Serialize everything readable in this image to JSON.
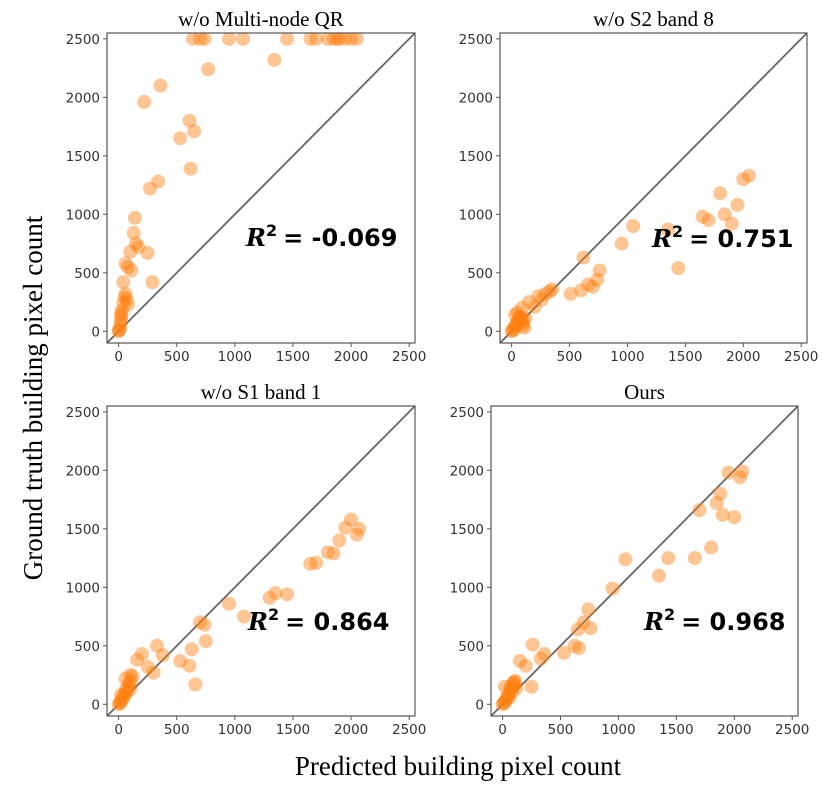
{
  "figure": {
    "xlabel": "Predicted building pixel count",
    "ylabel": "Ground truth building pixel count"
  },
  "colors": {
    "point": "#ff7f0e",
    "diagonal": "#666666",
    "frame": "#555555"
  },
  "chart_data": [
    {
      "type": "scatter",
      "title": "w/o Multi-node QR",
      "r2_label": "R",
      "r2_exp": "2",
      "r2_value": "= -0.069",
      "xlim": [
        -100,
        2550
      ],
      "ylim": [
        -100,
        2550
      ],
      "xticks": [
        0,
        500,
        1000,
        1500,
        2000,
        2500
      ],
      "yticks": [
        0,
        500,
        1000,
        1500,
        2000,
        2500
      ],
      "x": [
        0,
        5,
        10,
        15,
        20,
        25,
        30,
        40,
        50,
        60,
        70,
        80,
        20,
        40,
        60,
        80,
        100,
        110,
        130,
        140,
        150,
        170,
        220,
        250,
        270,
        290,
        340,
        360,
        530,
        610,
        640,
        650,
        620,
        700,
        740,
        770,
        950,
        1070,
        1340,
        1450,
        1650,
        1700,
        1800,
        1850,
        1880,
        1900,
        1950,
        2000,
        2050
      ],
      "y": [
        0,
        10,
        20,
        60,
        100,
        130,
        180,
        240,
        290,
        320,
        270,
        230,
        150,
        420,
        580,
        550,
        680,
        520,
        840,
        970,
        750,
        720,
        1960,
        670,
        1220,
        420,
        1280,
        2100,
        1650,
        1800,
        2500,
        1710,
        1390,
        2500,
        2500,
        2240,
        2500,
        2500,
        2320,
        2500,
        2500,
        2500,
        2500,
        2500,
        2500,
        2500,
        2500,
        2500,
        2500
      ]
    },
    {
      "type": "scatter",
      "title": "w/o S2 band 8",
      "r2_label": "R",
      "r2_exp": "2",
      "r2_value": "= 0.751",
      "xlim": [
        -100,
        2550
      ],
      "ylim": [
        -100,
        2550
      ],
      "xticks": [
        0,
        500,
        1000,
        1500,
        2000,
        2500
      ],
      "yticks": [
        0,
        500,
        1000,
        1500,
        2000,
        2500
      ],
      "x": [
        0,
        10,
        20,
        30,
        40,
        50,
        60,
        70,
        80,
        90,
        100,
        110,
        120,
        30,
        50,
        70,
        90,
        100,
        150,
        200,
        230,
        260,
        290,
        330,
        350,
        510,
        600,
        620,
        660,
        700,
        740,
        760,
        950,
        1050,
        1350,
        1440,
        1650,
        1700,
        1800,
        1840,
        1900,
        1950,
        2000,
        2050
      ],
      "y": [
        0,
        10,
        20,
        40,
        60,
        80,
        100,
        120,
        90,
        70,
        50,
        30,
        110,
        140,
        160,
        120,
        200,
        100,
        250,
        210,
        300,
        270,
        320,
        340,
        360,
        320,
        350,
        630,
        400,
        380,
        440,
        520,
        750,
        900,
        870,
        540,
        980,
        950,
        1180,
        1000,
        920,
        1080,
        1300,
        1330
      ],
      "diag_clip": [
        660,
        1180
      ]
    },
    {
      "type": "scatter",
      "title": "w/o S1 band 1",
      "r2_label": "R",
      "r2_exp": "2",
      "r2_value": "= 0.864",
      "xlim": [
        -100,
        2550
      ],
      "ylim": [
        -100,
        2550
      ],
      "xticks": [
        0,
        500,
        1000,
        1500,
        2000,
        2500
      ],
      "yticks": [
        0,
        500,
        1000,
        1500,
        2000,
        2500
      ],
      "x": [
        0,
        10,
        20,
        30,
        40,
        50,
        60,
        70,
        80,
        90,
        100,
        110,
        120,
        20,
        60,
        100,
        160,
        200,
        250,
        300,
        330,
        380,
        530,
        610,
        630,
        660,
        700,
        740,
        750,
        950,
        1080,
        1300,
        1350,
        1450,
        1650,
        1700,
        1800,
        1850,
        1900,
        1950,
        2000,
        2050,
        2070
      ],
      "y": [
        0,
        10,
        20,
        40,
        60,
        80,
        120,
        100,
        150,
        180,
        130,
        200,
        240,
        80,
        220,
        250,
        380,
        430,
        320,
        270,
        500,
        420,
        370,
        330,
        470,
        170,
        700,
        680,
        540,
        860,
        750,
        910,
        950,
        940,
        1200,
        1210,
        1300,
        1290,
        1400,
        1510,
        1580,
        1450,
        1500
      ]
    },
    {
      "type": "scatter",
      "title": "Ours",
      "r2_label": "R",
      "r2_exp": "2",
      "r2_value": "= 0.968",
      "xlim": [
        -100,
        2550
      ],
      "ylim": [
        -100,
        2550
      ],
      "xticks": [
        0,
        500,
        1000,
        1500,
        2000,
        2500
      ],
      "yticks": [
        0,
        500,
        1000,
        1500,
        2000,
        2500
      ],
      "x": [
        0,
        10,
        20,
        30,
        40,
        50,
        60,
        70,
        80,
        90,
        100,
        110,
        120,
        20,
        60,
        100,
        150,
        200,
        250,
        260,
        330,
        360,
        530,
        620,
        650,
        660,
        700,
        740,
        760,
        950,
        1060,
        1350,
        1430,
        1660,
        1700,
        1800,
        1850,
        1880,
        1900,
        1950,
        2000,
        2050,
        2070
      ],
      "y": [
        0,
        10,
        20,
        40,
        60,
        80,
        120,
        150,
        100,
        180,
        160,
        200,
        140,
        150,
        60,
        190,
        370,
        330,
        150,
        510,
        390,
        430,
        440,
        500,
        640,
        480,
        700,
        810,
        650,
        990,
        1240,
        1100,
        1250,
        1250,
        1660,
        1340,
        1720,
        1800,
        1620,
        1980,
        1600,
        1940,
        1990
      ]
    }
  ]
}
